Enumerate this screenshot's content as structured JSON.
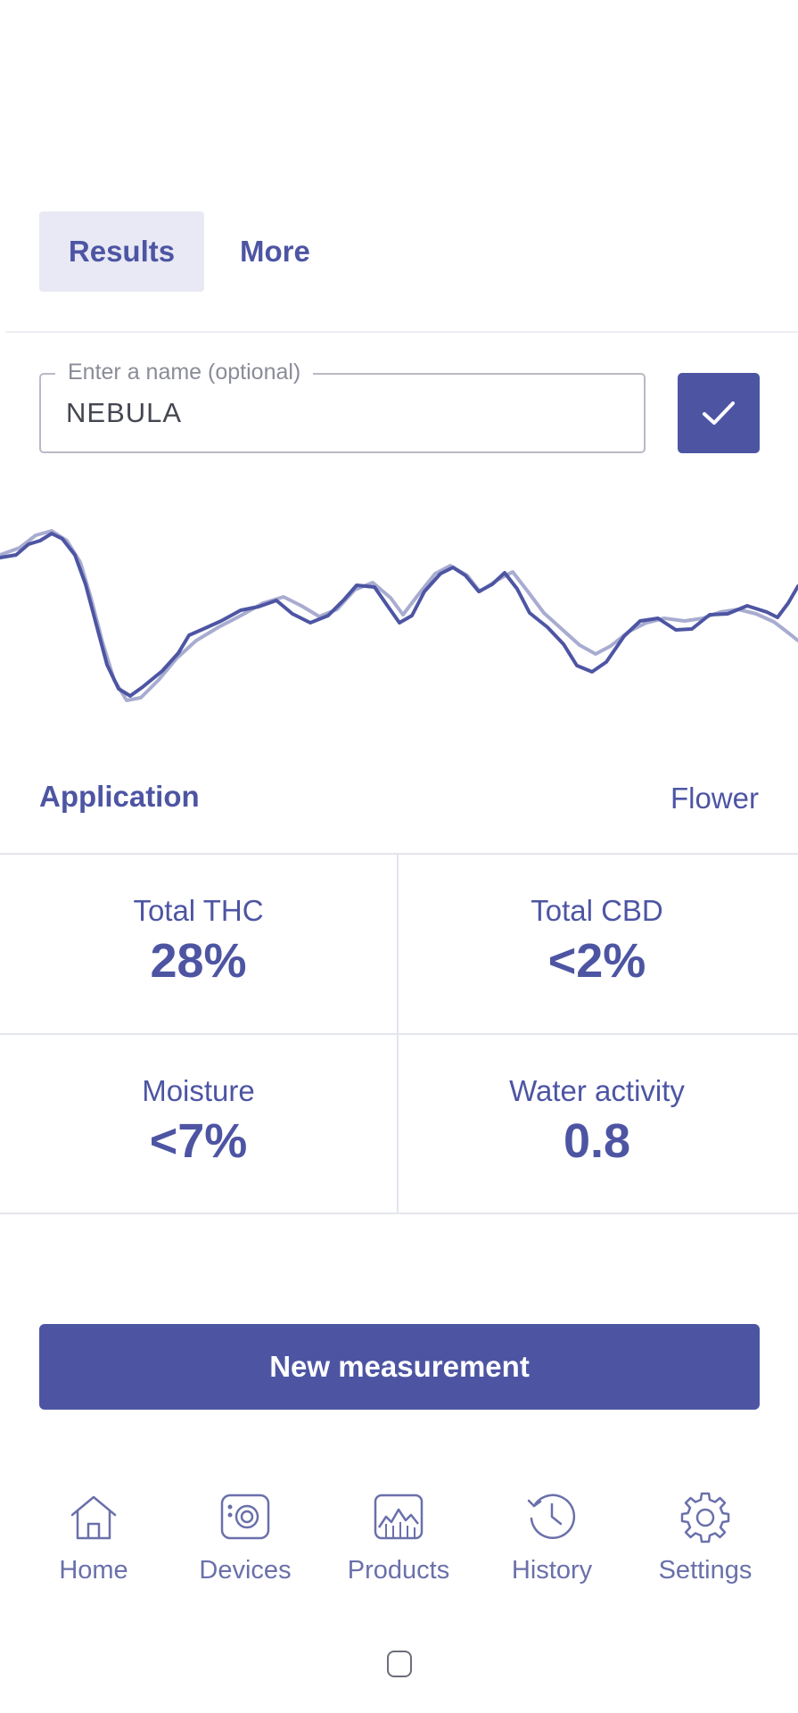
{
  "tabs": {
    "results": "Results",
    "more": "More"
  },
  "name_field": {
    "legend": "Enter a name (optional)",
    "value": "NEBULA"
  },
  "confirm": {
    "icon": "check-icon"
  },
  "application": {
    "label": "Application",
    "value": "Flower"
  },
  "metrics": [
    {
      "label": "Total THC",
      "value": "28%"
    },
    {
      "label": "Total CBD",
      "value": "<2%"
    },
    {
      "label": "Moisture",
      "value": "<7%"
    },
    {
      "label": "Water activity",
      "value": "0.8"
    }
  ],
  "new_measurement": {
    "label": "New measurement"
  },
  "nav": [
    {
      "label": "Home",
      "icon": "home-icon"
    },
    {
      "label": "Devices",
      "icon": "device-icon"
    },
    {
      "label": "Products",
      "icon": "products-chart-icon"
    },
    {
      "label": "History",
      "icon": "history-icon"
    },
    {
      "label": "Settings",
      "icon": "gear-icon"
    }
  ],
  "colors": {
    "accent": "#4d55a3",
    "tab_active_bg": "#e8e9f4",
    "reference_line": "#a8acd0",
    "divider": "#e4e6ee"
  }
}
